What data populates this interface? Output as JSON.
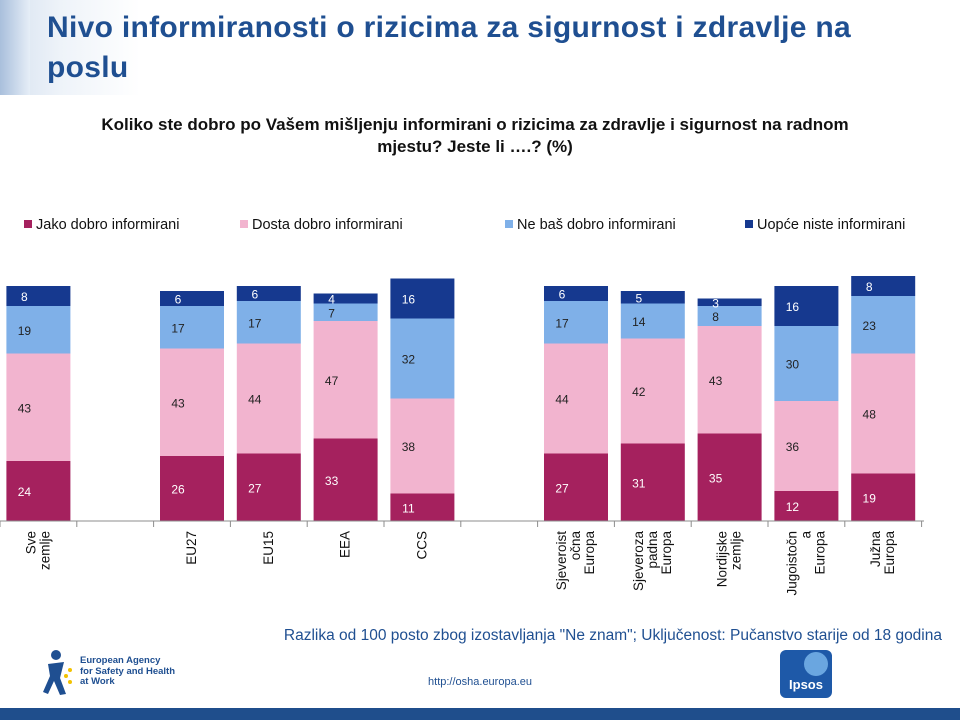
{
  "page": {
    "title": "Nivo informiranosti o rizicima za sigurnost i zdravlje na poslu",
    "note": "Razlika od 100 posto zbog izostavljanja \"Ne znam\"; Uključenost: Pučanstvo starije od 18 godina",
    "footer_url": "http://osha.europa.eu",
    "logo_lines": [
      "European Agency",
      "for Safety and Health",
      "at Work"
    ],
    "ipsos_label": "Ipsos"
  },
  "chart_data": {
    "type": "bar",
    "stacked": true,
    "title": "Koliko ste dobro po Vašem mišljenju informirani o rizicima za zdravlje i sigurnost na radnom mjestu? Jeste li ….? (%)",
    "categories": [
      "Sve zemlje",
      "",
      "EU27",
      "EU15",
      "EEA",
      "CCS",
      "",
      "Sjeveroist očna Europa",
      "Sjeveroza padna Europa",
      "Nordijske zemlje",
      "Jugoistočn a Europa",
      "Južna Europa"
    ],
    "series": [
      {
        "name": "Jako dobro informirani",
        "color": "#a5215e",
        "values": [
          24,
          null,
          26,
          27,
          33,
          11,
          null,
          27,
          31,
          35,
          12,
          19
        ]
      },
      {
        "name": "Dosta dobro informirani",
        "color": "#f2b4cf",
        "values": [
          43,
          null,
          43,
          44,
          47,
          38,
          null,
          44,
          42,
          43,
          36,
          48
        ]
      },
      {
        "name": "Ne baš dobro informirani",
        "color": "#7fb0e8",
        "values": [
          19,
          null,
          17,
          17,
          7,
          32,
          null,
          17,
          14,
          8,
          30,
          23
        ]
      },
      {
        "name": "Uopće niste informirani",
        "color": "#16398f",
        "values": [
          8,
          null,
          6,
          6,
          4,
          16,
          null,
          6,
          5,
          3,
          16,
          8
        ]
      }
    ],
    "ylim": [
      0,
      100
    ],
    "grid": false,
    "legend_position": "top"
  }
}
